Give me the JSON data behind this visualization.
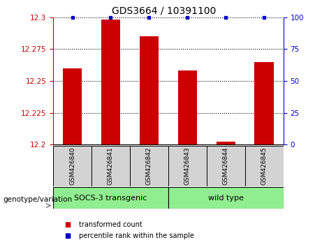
{
  "title": "GDS3664 / 10391100",
  "samples": [
    "GSM426840",
    "GSM426841",
    "GSM426842",
    "GSM426843",
    "GSM426844",
    "GSM426845"
  ],
  "red_values": [
    12.26,
    12.298,
    12.285,
    12.258,
    12.202,
    12.265
  ],
  "blue_values": [
    100,
    100,
    100,
    100,
    100,
    100
  ],
  "ylim_left": [
    12.2,
    12.3
  ],
  "ylim_right": [
    0,
    100
  ],
  "yticks_left": [
    12.2,
    12.225,
    12.25,
    12.275,
    12.3
  ],
  "yticks_right": [
    0,
    25,
    50,
    75,
    100
  ],
  "groups": [
    {
      "label": "SOCS-3 transgenic",
      "n": 3,
      "color": "#90EE90"
    },
    {
      "label": "wild type",
      "n": 3,
      "color": "#90EE90"
    }
  ],
  "bar_color": "#CC0000",
  "marker_color": "#0000CC",
  "label_color_red": "#CC0000",
  "label_color_blue": "#0000CC",
  "legend_red": "transformed count",
  "legend_blue": "percentile rank within the sample",
  "genotype_label": "genotype/variation",
  "sample_box_color": "#d3d3d3",
  "bar_width": 0.5
}
